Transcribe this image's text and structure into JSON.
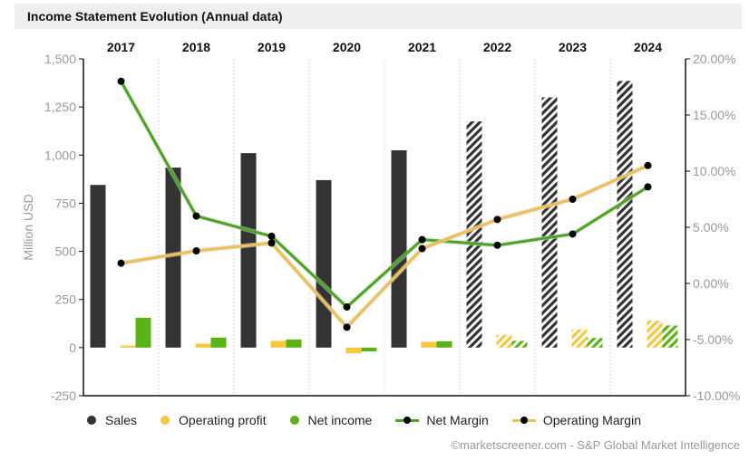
{
  "header": {
    "title": "Income Statement Evolution (Annual data)"
  },
  "colors": {
    "sales": "#333333",
    "operating_profit": "#f5c842",
    "net_income": "#5bb318",
    "net_margin_line": "#4aa620",
    "operating_margin_line": "#f0c050",
    "grid": "#bbbbbb",
    "axis_text": "#999999"
  },
  "chart_data": {
    "type": "bar",
    "categories": [
      "2017",
      "2018",
      "2019",
      "2020",
      "2021",
      "2022",
      "2023",
      "2024"
    ],
    "forecast_from_index": 5,
    "y_left": {
      "label": "Million USD",
      "range": [
        -250,
        1500
      ],
      "ticks": [
        "-250",
        "0",
        "250",
        "500",
        "750",
        "1,000",
        "1,250",
        "1,500"
      ],
      "tick_values": [
        -250,
        0,
        250,
        500,
        750,
        1000,
        1250,
        1500
      ]
    },
    "y_right": {
      "range": [
        -10,
        20
      ],
      "ticks": [
        "-10.00%",
        "-5.00%",
        "0.00%",
        "5.00%",
        "10.00%",
        "15.00%",
        "20.00%"
      ],
      "tick_values": [
        -10,
        -5,
        0,
        5,
        10,
        15,
        20
      ]
    },
    "series": [
      {
        "name": "Sales",
        "kind": "bar",
        "axis": "left",
        "values": [
          845,
          935,
          1010,
          870,
          1025,
          1175,
          1300,
          1385
        ]
      },
      {
        "name": "Operating profit",
        "kind": "bar",
        "axis": "left",
        "values": [
          10,
          20,
          35,
          -30,
          30,
          65,
          95,
          140
        ]
      },
      {
        "name": "Net income",
        "kind": "bar",
        "axis": "left",
        "values": [
          155,
          52,
          42,
          -20,
          33,
          35,
          50,
          115
        ]
      },
      {
        "name": "Net Margin",
        "kind": "line",
        "axis": "right",
        "values": [
          18.0,
          6.0,
          4.2,
          -2.1,
          3.9,
          3.4,
          4.4,
          8.6
        ]
      },
      {
        "name": "Operating Margin",
        "kind": "line",
        "axis": "right",
        "values": [
          1.8,
          2.9,
          3.6,
          -3.9,
          3.1,
          5.7,
          7.5,
          10.5
        ]
      }
    ],
    "grid": "vertical dotted",
    "legend_position": "bottom"
  },
  "legend": [
    {
      "label": "Sales",
      "style": "dot",
      "color": "#333333"
    },
    {
      "label": "Operating profit",
      "style": "dot",
      "color": "#f5c842"
    },
    {
      "label": "Net income",
      "style": "dot",
      "color": "#5bb318"
    },
    {
      "label": "Net Margin",
      "style": "line",
      "color": "#4aa620"
    },
    {
      "label": "Operating Margin",
      "style": "line",
      "color": "#f0c050"
    }
  ],
  "footer": {
    "credit": "©marketscreener.com - S&P Global Market Intelligence"
  }
}
